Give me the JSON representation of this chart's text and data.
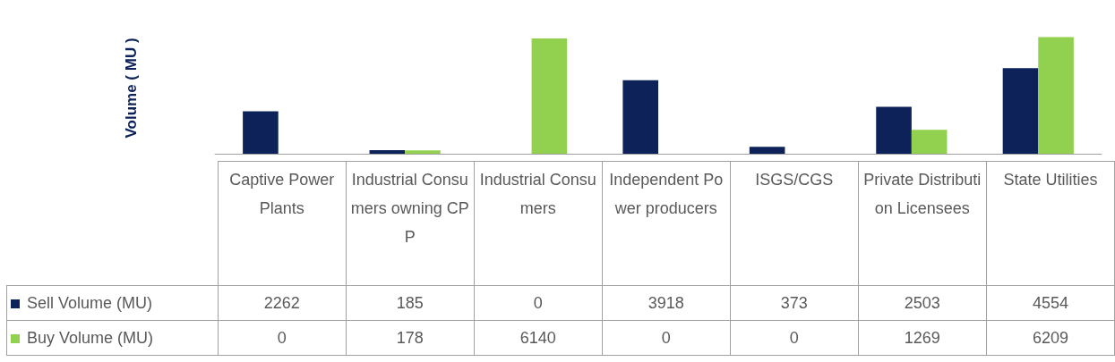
{
  "chart_data": {
    "type": "bar",
    "ylabel": "Volume ( MU )",
    "categories": [
      "Captive Power Plants",
      "Industrial Consumers owning CPP",
      "Industrial Consumers",
      "Independent Power producers",
      "ISGS/CGS",
      "Private Distribution Licensees",
      "State Utilities"
    ],
    "series": [
      {
        "name": "Sell Volume (MU)",
        "color": "#0d2258",
        "values": [
          2262,
          185,
          0,
          3918,
          373,
          2503,
          4554
        ]
      },
      {
        "name": "Buy Volume (MU)",
        "color": "#92d050",
        "values": [
          0,
          178,
          6140,
          0,
          0,
          1269,
          6209
        ]
      }
    ],
    "data_labels": true,
    "legend": "bottom",
    "grid": false
  }
}
